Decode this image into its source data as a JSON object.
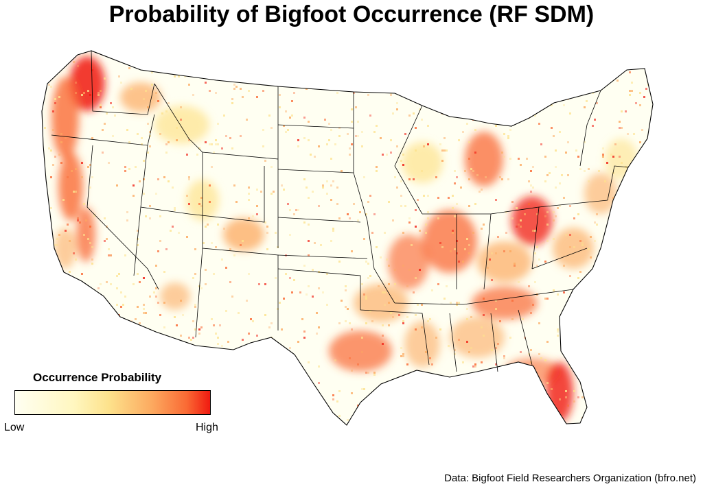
{
  "title": "Probability of Bigfoot Occurrence (RF SDM)",
  "legend": {
    "title": "Occurrence Probability",
    "low_label": "Low",
    "high_label": "High",
    "colors": [
      "#fffff2",
      "#fff7c0",
      "#fde28c",
      "#fcaa60",
      "#fa6a34",
      "#f01a10"
    ]
  },
  "caption": "Data: Bigfoot Field Researchers Organization (bfro.net)",
  "map": {
    "region": "Contiguous United States",
    "state_border_color": "#000000",
    "background_fill": "#fffff2",
    "hotspot_regions": [
      "Pacific Northwest (Washington, Oregon coast)",
      "Northern California",
      "Michigan",
      "Ohio",
      "Illinois / Missouri",
      "Kentucky / Tennessee",
      "East Texas / Oklahoma",
      "Florida",
      "Colorado Rockies"
    ]
  }
}
